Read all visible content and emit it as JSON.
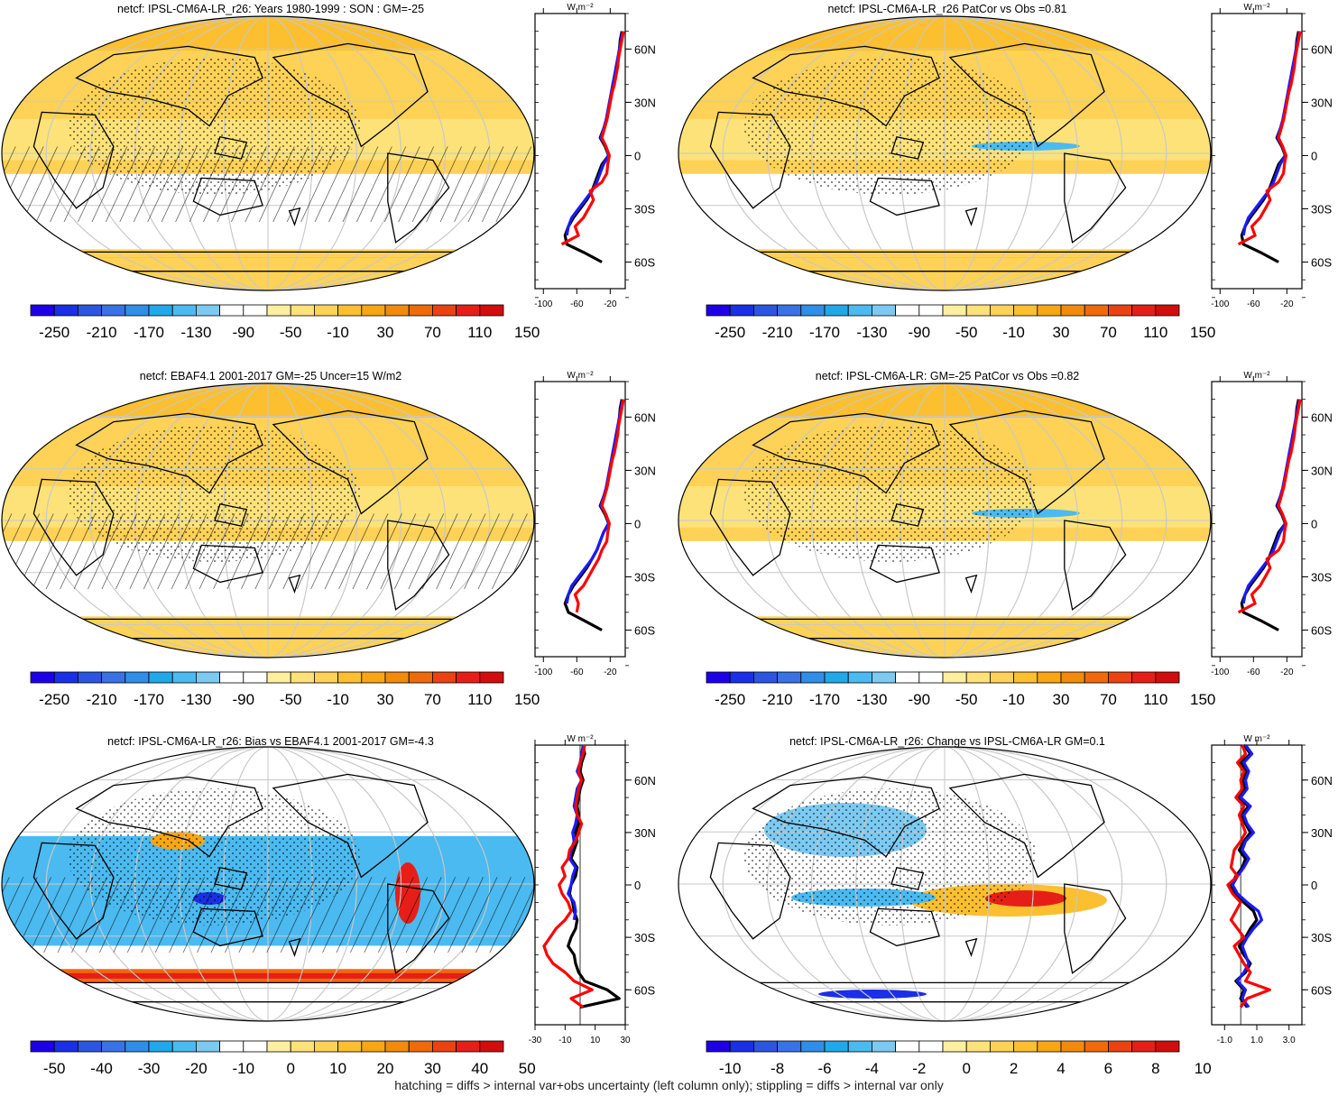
{
  "footnote": "hatching = diffs > internal var+obs uncertainty (left column only); stippling = diffs > internal var only",
  "colors": {
    "land_outline": "#000000",
    "grid": "#c8c8c8",
    "model_line": "#000000",
    "obs_line": "#ff0000",
    "ref_line": "#1a1aff"
  },
  "colorbars": {
    "absolute": {
      "colors": [
        "#1e00e6",
        "#1a2fe6",
        "#2c56e0",
        "#3a72e6",
        "#2f8ee8",
        "#21a8eb",
        "#4bbaf0",
        "#7ccaf2",
        "#ffffff",
        "#ffffff",
        "#fdefa0",
        "#fde27a",
        "#fdd257",
        "#fbbf30",
        "#f8a616",
        "#f28a0e",
        "#ee6a0c",
        "#ea4311",
        "#e51f18",
        "#d10d0d"
      ],
      "labels": [
        "-250",
        "-210",
        "-170",
        "-130",
        "-90",
        "-50",
        "-10",
        "30",
        "70",
        "110",
        "150"
      ]
    },
    "bias": {
      "colors": [
        "#1e00e6",
        "#1a2fe6",
        "#2c56e0",
        "#3a72e6",
        "#2f8ee8",
        "#21a8eb",
        "#4bbaf0",
        "#7ccaf2",
        "#ffffff",
        "#ffffff",
        "#fdefa0",
        "#fde27a",
        "#fdd257",
        "#fbbf30",
        "#f8a616",
        "#f28a0e",
        "#ee6a0c",
        "#ea4311",
        "#e51f18",
        "#d10d0d"
      ],
      "labels": [
        "-50",
        "-40",
        "-30",
        "-20",
        "-10",
        "0",
        "10",
        "20",
        "30",
        "40",
        "50"
      ]
    },
    "change": {
      "colors": [
        "#1e00e6",
        "#1a2fe6",
        "#2c56e0",
        "#3a72e6",
        "#2f8ee8",
        "#21a8eb",
        "#4bbaf0",
        "#7ccaf2",
        "#ffffff",
        "#ffffff",
        "#fdefa0",
        "#fde27a",
        "#fdd257",
        "#fbbf30",
        "#f8a616",
        "#f28a0e",
        "#ee6a0c",
        "#ea4311",
        "#e51f18",
        "#d10d0d"
      ],
      "labels": [
        "-10",
        "-8",
        "-6",
        "-4",
        "-2",
        "0",
        "2",
        "4",
        "6",
        "8",
        "10"
      ]
    }
  },
  "profile_unit": "W m⁻²",
  "lat_labels": [
    "60N",
    "30N",
    "0",
    "30S",
    "60S"
  ],
  "chart_data": [
    {
      "type": "heatmap",
      "title": "netcf: IPSL-CM6A-LR_r26: Years 1980-1999 : SON : GM=-25",
      "colorbar": "absolute",
      "hatching": true,
      "profile": {
        "xticks": [
          "-100",
          "-60",
          "-20"
        ],
        "xlim": [
          -110,
          -2
        ],
        "lat": [
          80,
          75,
          70,
          65,
          60,
          55,
          50,
          45,
          40,
          35,
          30,
          25,
          20,
          15,
          10,
          5,
          0,
          -5,
          -10,
          -15,
          -20,
          -25,
          -30,
          -35,
          -40,
          -45,
          -50,
          -55,
          -60
        ],
        "series": [
          {
            "name": "model",
            "color": "#000000",
            "values": [
              null,
              null,
              -6,
              -8,
              -9,
              -10,
              -12,
              -14,
              -16,
              -18,
              -20,
              -22,
              -24,
              -28,
              -32,
              -26,
              -22,
              -30,
              -34,
              -38,
              -42,
              -48,
              -56,
              -64,
              -70,
              -74,
              -72,
              -50,
              -30
            ]
          },
          {
            "name": "reference",
            "color": "#1a1aff",
            "values": [
              null,
              null,
              -5,
              -7,
              -9,
              -11,
              -13,
              -15,
              -17,
              -19,
              -21,
              -23,
              -25,
              -28,
              -31,
              -25,
              -22,
              -28,
              -32,
              -36,
              -42,
              -50,
              -58,
              -66,
              -70,
              -72,
              null,
              null,
              null
            ]
          },
          {
            "name": "obs",
            "color": "#ff0000",
            "values": [
              null,
              null,
              -4,
              -6,
              -8,
              -10,
              -11,
              -13,
              -15,
              -18,
              -20,
              -22,
              -24,
              -27,
              -30,
              -25,
              -21,
              -23,
              -24,
              -30,
              -44,
              -40,
              -46,
              -52,
              -62,
              -58,
              -78,
              null,
              null
            ]
          }
        ]
      }
    },
    {
      "type": "heatmap",
      "title": "netcf: IPSL-CM6A-LR_r26 PatCor vs Obs =0.81",
      "colorbar": "absolute",
      "hatching": false,
      "profile": {
        "xticks": [
          "-100",
          "-60",
          "-20"
        ],
        "xlim": [
          -110,
          -2
        ],
        "lat": [
          80,
          75,
          70,
          65,
          60,
          55,
          50,
          45,
          40,
          35,
          30,
          25,
          20,
          15,
          10,
          5,
          0,
          -5,
          -10,
          -15,
          -20,
          -25,
          -30,
          -35,
          -40,
          -45,
          -50,
          -55,
          -60
        ],
        "series": [
          {
            "name": "model",
            "color": "#000000",
            "values": [
              null,
              null,
              -6,
              -8,
              -9,
              -10,
              -12,
              -14,
              -16,
              -18,
              -20,
              -22,
              -24,
              -28,
              -32,
              -26,
              -22,
              -30,
              -34,
              -38,
              -42,
              -48,
              -56,
              -64,
              -70,
              -74,
              -72,
              -50,
              -30
            ]
          },
          {
            "name": "reference",
            "color": "#1a1aff",
            "values": [
              null,
              null,
              -5,
              -7,
              -9,
              -11,
              -13,
              -15,
              -17,
              -19,
              -21,
              -23,
              -25,
              -28,
              -31,
              -25,
              -22,
              -28,
              -32,
              -36,
              -42,
              -50,
              -58,
              -66,
              -70,
              -72,
              null,
              null,
              null
            ]
          },
          {
            "name": "obs",
            "color": "#ff0000",
            "values": [
              null,
              null,
              -4,
              -6,
              -8,
              -10,
              -11,
              -13,
              -15,
              -18,
              -20,
              -22,
              -24,
              -27,
              -30,
              -25,
              -21,
              -23,
              -24,
              -30,
              -44,
              -40,
              -46,
              -52,
              -62,
              -58,
              -78,
              null,
              null
            ]
          }
        ]
      }
    },
    {
      "type": "heatmap",
      "title": "netcf: EBAF4.1 2001-2017 GM=-25 Uncer=15 W/m2",
      "colorbar": "absolute",
      "hatching": true,
      "profile": {
        "xticks": [
          "-100",
          "-60",
          "-20"
        ],
        "xlim": [
          -110,
          -2
        ],
        "lat": [
          80,
          75,
          70,
          65,
          60,
          55,
          50,
          45,
          40,
          35,
          30,
          25,
          20,
          15,
          10,
          5,
          0,
          -5,
          -10,
          -15,
          -20,
          -25,
          -30,
          -35,
          -40,
          -45,
          -50,
          -55,
          -60
        ],
        "series": [
          {
            "name": "model",
            "color": "#000000",
            "values": [
              null,
              null,
              -6,
              -8,
              -9,
              -10,
              -12,
              -14,
              -16,
              -18,
              -20,
              -22,
              -24,
              -28,
              -32,
              -26,
              -22,
              -28,
              -32,
              -36,
              -42,
              -48,
              -56,
              -64,
              -70,
              -74,
              -70,
              -50,
              -30
            ]
          },
          {
            "name": "reference",
            "color": "#1a1aff",
            "values": [
              null,
              null,
              -5,
              -7,
              -9,
              -11,
              -13,
              -15,
              -17,
              -19,
              -21,
              -23,
              -25,
              -28,
              -31,
              -25,
              -22,
              -28,
              -32,
              -36,
              -42,
              -50,
              -58,
              -66,
              -70,
              -72,
              null,
              null,
              null
            ]
          },
          {
            "name": "obs",
            "color": "#ff0000",
            "values": [
              null,
              null,
              -4,
              -6,
              -8,
              -10,
              -11,
              -13,
              -15,
              -18,
              -20,
              -22,
              -24,
              -27,
              -30,
              -25,
              -21,
              -23,
              -24,
              -30,
              -34,
              -40,
              -46,
              -52,
              -62,
              -58,
              -60,
              null,
              null
            ]
          }
        ]
      }
    },
    {
      "type": "heatmap",
      "title": "netcf: IPSL-CM6A-LR: GM=-25 PatCor vs Obs =0.82",
      "colorbar": "absolute",
      "hatching": false,
      "profile": {
        "xticks": [
          "-100",
          "-60",
          "-20"
        ],
        "xlim": [
          -110,
          -2
        ],
        "lat": [
          80,
          75,
          70,
          65,
          60,
          55,
          50,
          45,
          40,
          35,
          30,
          25,
          20,
          15,
          10,
          5,
          0,
          -5,
          -10,
          -15,
          -20,
          -25,
          -30,
          -35,
          -40,
          -45,
          -50,
          -55,
          -60
        ],
        "series": [
          {
            "name": "model",
            "color": "#000000",
            "values": [
              null,
              null,
              -6,
              -8,
              -9,
              -10,
              -12,
              -14,
              -16,
              -18,
              -20,
              -22,
              -24,
              -28,
              -32,
              -26,
              -22,
              -30,
              -34,
              -38,
              -42,
              -48,
              -56,
              -64,
              -70,
              -74,
              -72,
              -50,
              -30
            ]
          },
          {
            "name": "reference",
            "color": "#1a1aff",
            "values": [
              null,
              null,
              -5,
              -7,
              -9,
              -11,
              -13,
              -15,
              -17,
              -19,
              -21,
              -23,
              -25,
              -28,
              -31,
              -25,
              -22,
              -28,
              -32,
              -36,
              -42,
              -50,
              -58,
              -66,
              -70,
              -72,
              null,
              null,
              null
            ]
          },
          {
            "name": "obs",
            "color": "#ff0000",
            "values": [
              null,
              null,
              -4,
              -6,
              -8,
              -10,
              -11,
              -13,
              -15,
              -18,
              -20,
              -22,
              -24,
              -27,
              -30,
              -25,
              -21,
              -23,
              -24,
              -30,
              -44,
              -40,
              -46,
              -52,
              -62,
              -58,
              -78,
              null,
              null
            ]
          }
        ]
      }
    },
    {
      "type": "heatmap",
      "title": "netcf: IPSL-CM6A-LR_r26: Bias vs EBAF4.1 2001-2017  GM=-4.3",
      "colorbar": "bias",
      "hatching": true,
      "profile": {
        "xticks": [
          "-30",
          "-10",
          "10",
          "30"
        ],
        "xlim": [
          -30,
          30
        ],
        "lat": [
          80,
          75,
          70,
          65,
          60,
          55,
          50,
          45,
          40,
          35,
          30,
          25,
          20,
          15,
          10,
          5,
          0,
          -5,
          -10,
          -15,
          -20,
          -25,
          -30,
          -35,
          -40,
          -45,
          -50,
          -55,
          -60,
          -65,
          -70
        ],
        "series": [
          {
            "name": "model",
            "color": "#000000",
            "values": [
              2,
              3,
              1,
              0,
              2,
              0,
              -1,
              -2,
              -1,
              -1,
              -3,
              -2,
              -4,
              -6,
              -2,
              -3,
              -6,
              -7,
              -5,
              -4,
              -2,
              -3,
              -6,
              -8,
              -4,
              -3,
              -1,
              3,
              18,
              26,
              0
            ]
          },
          {
            "name": "reference",
            "color": "#1a1aff",
            "values": [
              2,
              1,
              0,
              -2,
              1,
              -2,
              -3,
              -4,
              -2,
              -3,
              -5,
              -4,
              -6,
              -7,
              -3,
              -5,
              -6,
              -8,
              -4,
              -3,
              -4,
              null,
              null,
              null,
              null,
              null,
              null,
              null,
              null,
              null,
              null
            ]
          },
          {
            "name": "obs",
            "color": "#ff0000",
            "values": [
              3,
              2,
              0,
              -1,
              1,
              -1,
              -2,
              -3,
              -2,
              1,
              -1,
              -3,
              -7,
              -8,
              -12,
              -10,
              -14,
              -12,
              -8,
              -6,
              -10,
              -16,
              -20,
              -24,
              -22,
              -18,
              -10,
              -4,
              8,
              -6,
              2
            ]
          }
        ]
      }
    },
    {
      "type": "heatmap",
      "title": "netcf: IPSL-CM6A-LR_r26: Change vs IPSL-CM6A-LR GM=0.1",
      "colorbar": "change",
      "hatching": false,
      "profile": {
        "xticks": [
          "-1.0",
          "1.0",
          "3.0"
        ],
        "xlim": [
          -1.8,
          3.8
        ],
        "lat": [
          80,
          75,
          70,
          65,
          60,
          55,
          50,
          45,
          40,
          35,
          30,
          25,
          20,
          15,
          10,
          5,
          0,
          -5,
          -10,
          -15,
          -20,
          -25,
          -30,
          -35,
          -40,
          -45,
          -50,
          -55,
          -60,
          -65,
          -70
        ],
        "series": [
          {
            "name": "model",
            "color": "#000000",
            "values": [
              0.2,
              0.6,
              0.0,
              0.4,
              0.1,
              0.3,
              -0.2,
              0.5,
              0.0,
              0.3,
              0.6,
              0.2,
              -0.1,
              0.3,
              0.1,
              -0.3,
              -0.6,
              -0.4,
              0.2,
              0.8,
              1.0,
              0.6,
              0.3,
              -0.1,
              0.2,
              0.6,
              0.3,
              -0.3,
              0.2,
              0.0,
              0.4
            ]
          },
          {
            "name": "reference",
            "color": "#1a1aff",
            "values": [
              0.3,
              0.7,
              0.2,
              0.5,
              0.3,
              0.4,
              0.0,
              0.6,
              0.2,
              0.4,
              0.8,
              0.3,
              0.1,
              0.5,
              0.2,
              -0.2,
              -0.5,
              -0.2,
              0.4,
              1.1,
              1.3,
              0.8,
              0.4,
              0.1,
              0.3,
              0.5,
              0.2,
              -0.2,
              0.3,
              0.1,
              0.5
            ]
          },
          {
            "name": "obs",
            "color": "#ff0000",
            "values": [
              0.1,
              0.3,
              -0.2,
              0.2,
              0.0,
              0.1,
              -0.3,
              0.2,
              -0.1,
              0.1,
              0.3,
              0.0,
              -0.4,
              -0.5,
              -0.6,
              -0.2,
              -0.8,
              -0.5,
              0.0,
              -0.3,
              -0.6,
              -0.2,
              0.2,
              -0.4,
              -0.1,
              0.2,
              0.6,
              0.3,
              1.8,
              0.4,
              0.0
            ]
          }
        ]
      }
    }
  ]
}
